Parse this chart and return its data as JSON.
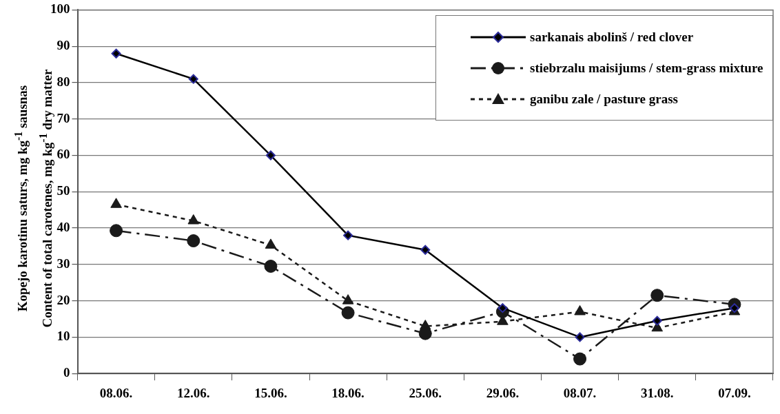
{
  "chart_data": {
    "type": "line",
    "ylabel": "Kopejo karotinu saturs, mg kg$^{-1}$ sausnas\nContent of total carotenes, mg kg$^{-1}$ dry matter",
    "categories": [
      "08.06.",
      "12.06.",
      "15.06.",
      "18.06.",
      "25.06.",
      "29.06.",
      "08.07.",
      "31.08.",
      "07.09."
    ],
    "series": [
      {
        "name": "sarkanais abolinš / red clover",
        "color": "#000000",
        "marker": "diamond",
        "line_style": "solid",
        "values": [
          88,
          81,
          60,
          38,
          34,
          18,
          10,
          14.5,
          18
        ]
      },
      {
        "name": "stiebrzalu maisijums / stem-grass mixture",
        "color": "#1a1a1a",
        "marker": "circle",
        "line_style": "dashed",
        "values": [
          39.3,
          36.5,
          29.5,
          16.7,
          11,
          17,
          4,
          21.5,
          19
        ]
      },
      {
        "name": "ganibu zale / pasture grass",
        "color": "#1a1a1a",
        "marker": "triangle",
        "line_style": "dotted",
        "values": [
          46.5,
          42,
          35.3,
          20,
          13,
          14.3,
          17,
          12.5,
          17
        ]
      }
    ],
    "ylim": [
      0,
      100
    ],
    "yticks": [
      0,
      10,
      20,
      30,
      40,
      50,
      60,
      70,
      80,
      90,
      100
    ],
    "grid": "y",
    "legend": "top right"
  }
}
